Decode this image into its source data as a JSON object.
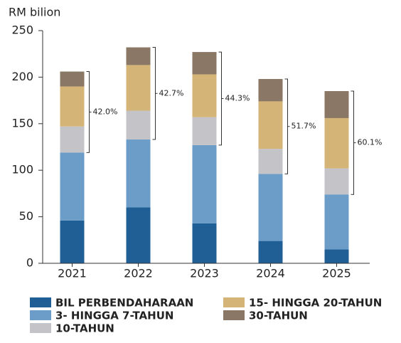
{
  "chart_data": {
    "type": "stacked_bar",
    "y_label": "RM bilion",
    "categories": [
      "2021",
      "2022",
      "2023",
      "2024",
      "2025"
    ],
    "series": [
      {
        "name": "BIL PERBENDAHARAAN",
        "color": "#1f5f96",
        "values": [
          46,
          60,
          43,
          24,
          15
        ]
      },
      {
        "name": "3- HINGGA 7-TAHUN",
        "color": "#6b9dc8",
        "values": [
          73,
          73,
          84,
          72,
          59
        ]
      },
      {
        "name": "10-TAHUN",
        "color": "#c4c3c8",
        "values": [
          28,
          31,
          30,
          27,
          28
        ]
      },
      {
        "name": "15- HINGGA 20-TAHUN",
        "color": "#d4b477",
        "values": [
          43,
          49,
          46,
          51,
          54
        ]
      },
      {
        "name": "30-TAHUN",
        "color": "#8a7765",
        "values": [
          16,
          19,
          24,
          24,
          29
        ]
      }
    ],
    "bracket_labels": [
      "42.0%",
      "42.7%",
      "44.3%",
      "51.7%",
      "60.1%"
    ],
    "ylim": [
      0,
      250
    ],
    "yticks": [
      0,
      50,
      100,
      150,
      200,
      250
    ]
  }
}
